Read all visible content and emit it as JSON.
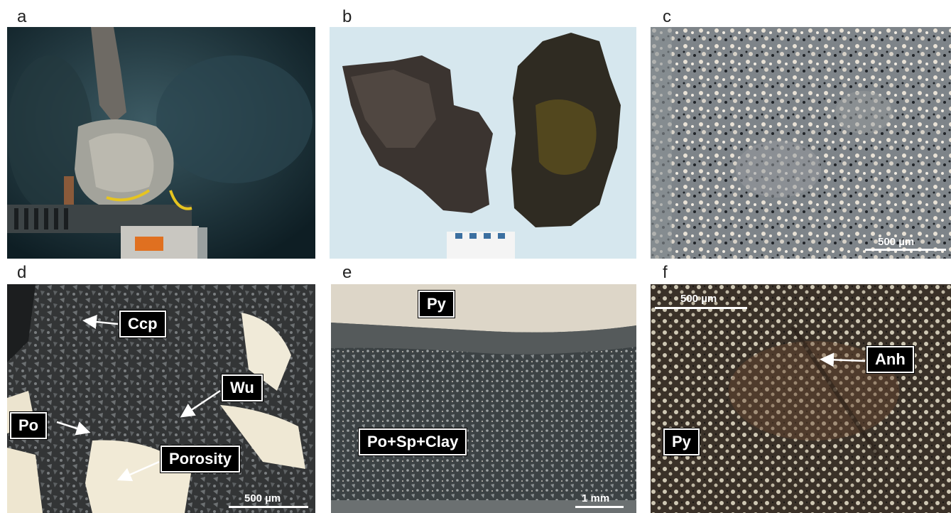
{
  "panel_labels": [
    "a",
    "b",
    "c",
    "d",
    "e",
    "f"
  ],
  "scale_bars": {
    "c": "500 µm",
    "d": "500 µm",
    "e": "1 mm",
    "f": "500 µm"
  },
  "annotations": {
    "d": [
      "Ccp",
      "Wu",
      "Po",
      "Porosity"
    ],
    "e": [
      "Py",
      "Po+Sp+Clay"
    ],
    "f": [
      "Anh",
      "Py"
    ]
  }
}
